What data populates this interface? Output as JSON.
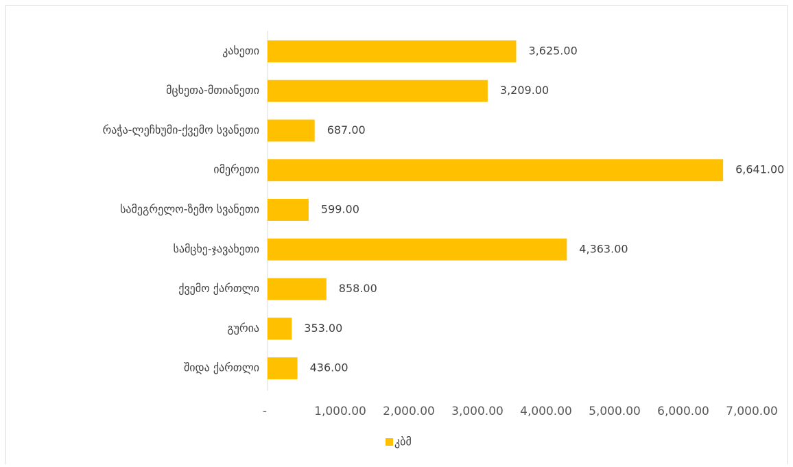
{
  "chart_data": {
    "type": "bar",
    "orientation": "horizontal",
    "categories": [
      "კახეთი",
      "მცხეთა-მთიანეთი",
      "რაჭა-ლეჩხუმი-ქვემო სვანეთი",
      "იმერეთი",
      "სამეგრელო-ზემო სვანეთი",
      "სამცხე-ჯავახეთი",
      "ქვემო ქართლი",
      "გურია",
      "შიდა ქართლი"
    ],
    "series": [
      {
        "name": "კბმ",
        "color": "#ffc000",
        "values": [
          3625,
          3209,
          687,
          6641,
          599,
          4363,
          858,
          353,
          436
        ],
        "value_labels": [
          "3,625.00",
          "3,209.00",
          "687.00",
          "6,641.00",
          "599.00",
          "4,363.00",
          "858.00",
          "353.00",
          "436.00"
        ]
      }
    ],
    "xlim": [
      0,
      7000
    ],
    "xticks": [
      {
        "value": 0,
        "label": "-"
      },
      {
        "value": 1000,
        "label": "1,000.00"
      },
      {
        "value": 2000,
        "label": "2,000.00"
      },
      {
        "value": 3000,
        "label": "3,000.00"
      },
      {
        "value": 4000,
        "label": "4,000.00"
      },
      {
        "value": 5000,
        "label": "5,000.00"
      },
      {
        "value": 6000,
        "label": "6,000.00"
      },
      {
        "value": 7000,
        "label": "7,000.00"
      }
    ],
    "legend": "bottom",
    "grid": false
  }
}
